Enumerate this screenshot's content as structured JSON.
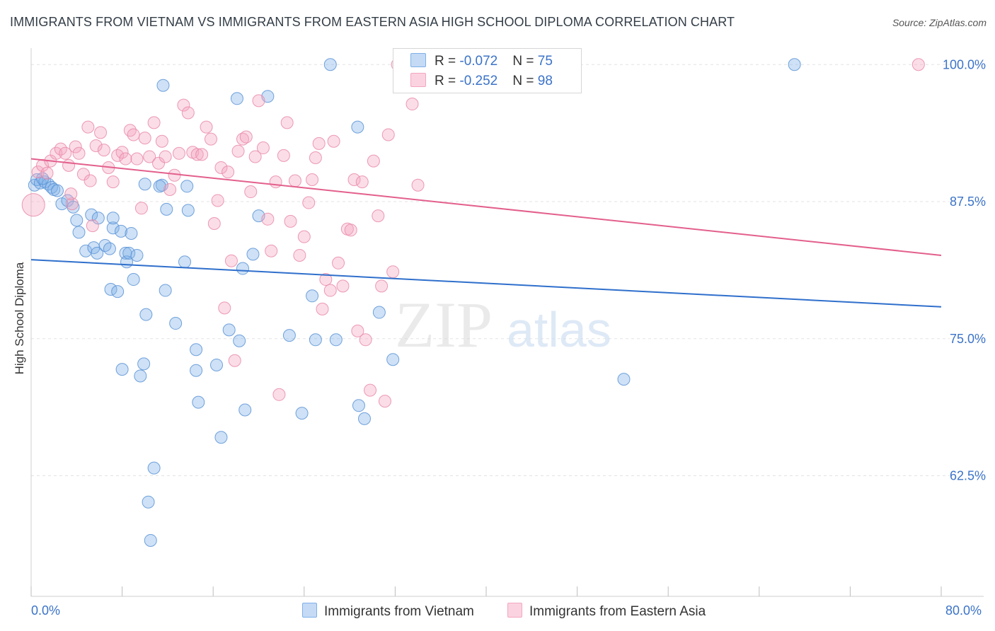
{
  "header": {
    "title": "IMMIGRANTS FROM VIETNAM VS IMMIGRANTS FROM EASTERN ASIA HIGH SCHOOL DIPLOMA CORRELATION CHART",
    "source": "Source: ZipAtlas.com"
  },
  "watermark": {
    "zip": "ZIP",
    "atlas": "atlas"
  },
  "legend": {
    "rows": [
      {
        "r_label": "R = ",
        "r_value": "-0.072",
        "n_label": "N = ",
        "n_value": "75",
        "color": "#7fb0e8"
      },
      {
        "r_label": "R = ",
        "r_value": "-0.252",
        "n_label": "N = ",
        "n_value": "98",
        "color": "#f4a6bf"
      }
    ]
  },
  "bottom_legend": {
    "items": [
      {
        "label": "Immigrants from Vietnam",
        "color": "#7fb0e8"
      },
      {
        "label": "Immigrants from Eastern Asia",
        "color": "#f4a6bf"
      }
    ]
  },
  "chart_data": {
    "type": "scatter",
    "xlabel": "",
    "ylabel": "High School Diploma",
    "xlim": [
      0,
      80
    ],
    "ylim": [
      51.5,
      101.5
    ],
    "x_tick_labels": [
      "0.0%",
      "80.0%"
    ],
    "y_ticks": [
      62.5,
      75.0,
      87.5,
      100.0
    ],
    "y_tick_labels": [
      "62.5%",
      "75.0%",
      "87.5%",
      "100.0%"
    ],
    "grid": true,
    "legend_position": "top-center",
    "series": [
      {
        "name": "Immigrants from Vietnam",
        "color": "#7fb0e8",
        "stroke": "#5b93d6",
        "trend": {
          "x": [
            0,
            80
          ],
          "y": [
            82.2,
            77.9
          ],
          "color": "#2f6fcc"
        },
        "points": [
          [
            0.3,
            89.0
          ],
          [
            0.5,
            89.5
          ],
          [
            0.8,
            89.2
          ],
          [
            1.2,
            89.3
          ],
          [
            1.5,
            89.1
          ],
          [
            1.8,
            88.8
          ],
          [
            2.0,
            88.6
          ],
          [
            1.0,
            89.6
          ],
          [
            2.3,
            88.5
          ],
          [
            2.7,
            87.3
          ],
          [
            3.2,
            87.6
          ],
          [
            3.7,
            87.0
          ],
          [
            4.0,
            85.8
          ],
          [
            4.2,
            84.7
          ],
          [
            4.8,
            83.0
          ],
          [
            5.5,
            83.3
          ],
          [
            5.8,
            82.8
          ],
          [
            5.3,
            86.3
          ],
          [
            5.9,
            86.0
          ],
          [
            6.5,
            83.5
          ],
          [
            6.9,
            83.2
          ],
          [
            7.2,
            85.1
          ],
          [
            7.0,
            79.5
          ],
          [
            7.6,
            79.3
          ],
          [
            7.2,
            86.0
          ],
          [
            7.9,
            84.8
          ],
          [
            8.3,
            82.8
          ],
          [
            8.4,
            82.0
          ],
          [
            8.8,
            84.6
          ],
          [
            9.0,
            80.4
          ],
          [
            8.6,
            82.8
          ],
          [
            9.3,
            82.6
          ],
          [
            10.0,
            89.1
          ],
          [
            11.5,
            89.0
          ],
          [
            11.3,
            88.9
          ],
          [
            11.8,
            79.4
          ],
          [
            11.9,
            86.8
          ],
          [
            12.7,
            76.4
          ],
          [
            13.7,
            88.9
          ],
          [
            13.5,
            82.0
          ],
          [
            13.8,
            86.7
          ],
          [
            14.5,
            74.0
          ],
          [
            14.5,
            72.1
          ],
          [
            14.7,
            69.2
          ],
          [
            16.3,
            72.6
          ],
          [
            16.7,
            66.0
          ],
          [
            17.4,
            75.8
          ],
          [
            18.3,
            74.8
          ],
          [
            18.6,
            81.4
          ],
          [
            18.8,
            68.5
          ],
          [
            19.5,
            82.7
          ],
          [
            20.0,
            86.2
          ],
          [
            20.8,
            97.1
          ],
          [
            22.7,
            75.3
          ],
          [
            23.8,
            68.2
          ],
          [
            24.7,
            78.9
          ],
          [
            25.0,
            74.9
          ],
          [
            26.3,
            100.0
          ],
          [
            26.8,
            74.9
          ],
          [
            28.7,
            94.3
          ],
          [
            28.8,
            68.9
          ],
          [
            29.3,
            67.7
          ],
          [
            30.6,
            77.4
          ],
          [
            31.8,
            73.1
          ],
          [
            8.0,
            72.2
          ],
          [
            10.1,
            77.2
          ],
          [
            9.6,
            71.6
          ],
          [
            9.9,
            72.7
          ],
          [
            10.3,
            60.1
          ],
          [
            10.5,
            56.6
          ],
          [
            10.8,
            63.2
          ],
          [
            11.6,
            98.1
          ],
          [
            18.1,
            96.9
          ],
          [
            67.1,
            100.0
          ],
          [
            52.1,
            71.3
          ]
        ]
      },
      {
        "name": "Immigrants from Eastern Asia",
        "color": "#f4a6bf",
        "stroke": "#e989a8",
        "trend": {
          "x": [
            0,
            80
          ],
          "y": [
            91.4,
            82.6
          ],
          "color": "#e35f8d"
        },
        "points": [
          [
            0.2,
            87.2
          ],
          [
            0.6,
            90.2
          ],
          [
            1.0,
            90.8
          ],
          [
            1.4,
            90.1
          ],
          [
            1.7,
            91.2
          ],
          [
            2.2,
            91.9
          ],
          [
            2.6,
            92.3
          ],
          [
            3.0,
            91.9
          ],
          [
            3.3,
            90.8
          ],
          [
            3.6,
            87.3
          ],
          [
            3.9,
            92.5
          ],
          [
            4.2,
            91.9
          ],
          [
            4.6,
            90.0
          ],
          [
            5.0,
            94.3
          ],
          [
            5.4,
            85.3
          ],
          [
            5.7,
            92.6
          ],
          [
            6.1,
            93.8
          ],
          [
            6.4,
            92.2
          ],
          [
            6.8,
            90.6
          ],
          [
            7.2,
            89.3
          ],
          [
            7.6,
            91.7
          ],
          [
            8.0,
            92.0
          ],
          [
            8.3,
            91.4
          ],
          [
            8.7,
            94.0
          ],
          [
            9.0,
            93.6
          ],
          [
            9.3,
            91.4
          ],
          [
            9.7,
            86.9
          ],
          [
            10.0,
            93.3
          ],
          [
            10.4,
            91.6
          ],
          [
            10.8,
            94.7
          ],
          [
            11.2,
            91.0
          ],
          [
            11.5,
            93.0
          ],
          [
            11.8,
            91.6
          ],
          [
            12.2,
            88.6
          ],
          [
            12.6,
            89.9
          ],
          [
            13.0,
            91.9
          ],
          [
            13.4,
            96.3
          ],
          [
            13.8,
            95.6
          ],
          [
            14.2,
            92.0
          ],
          [
            14.6,
            91.8
          ],
          [
            15.0,
            91.8
          ],
          [
            15.4,
            94.3
          ],
          [
            15.8,
            93.2
          ],
          [
            16.1,
            85.5
          ],
          [
            16.4,
            87.6
          ],
          [
            16.7,
            90.6
          ],
          [
            17.0,
            77.8
          ],
          [
            17.3,
            90.2
          ],
          [
            17.6,
            82.1
          ],
          [
            17.9,
            73.0
          ],
          [
            18.2,
            92.1
          ],
          [
            18.6,
            93.2
          ],
          [
            18.9,
            93.4
          ],
          [
            19.3,
            88.4
          ],
          [
            19.7,
            91.6
          ],
          [
            20.0,
            96.7
          ],
          [
            20.4,
            92.4
          ],
          [
            20.8,
            85.9
          ],
          [
            21.1,
            83.0
          ],
          [
            21.5,
            89.3
          ],
          [
            21.8,
            69.9
          ],
          [
            22.2,
            91.7
          ],
          [
            22.5,
            94.7
          ],
          [
            22.8,
            85.7
          ],
          [
            23.2,
            89.4
          ],
          [
            23.6,
            82.6
          ],
          [
            24.0,
            84.3
          ],
          [
            24.4,
            87.4
          ],
          [
            24.7,
            89.5
          ],
          [
            25.0,
            91.5
          ],
          [
            25.3,
            92.8
          ],
          [
            25.6,
            77.7
          ],
          [
            25.9,
            80.4
          ],
          [
            26.3,
            79.4
          ],
          [
            26.6,
            93.0
          ],
          [
            27.0,
            81.9
          ],
          [
            27.4,
            79.8
          ],
          [
            27.8,
            85.0
          ],
          [
            28.1,
            84.9
          ],
          [
            28.4,
            89.5
          ],
          [
            28.7,
            75.7
          ],
          [
            29.1,
            89.3
          ],
          [
            29.4,
            74.9
          ],
          [
            29.8,
            70.3
          ],
          [
            30.1,
            91.2
          ],
          [
            30.5,
            86.2
          ],
          [
            30.8,
            79.8
          ],
          [
            31.1,
            69.3
          ],
          [
            31.4,
            93.6
          ],
          [
            31.8,
            81.1
          ],
          [
            32.2,
            100.0
          ],
          [
            32.7,
            98.9
          ],
          [
            33.1,
            100.0
          ],
          [
            33.5,
            96.4
          ],
          [
            34.0,
            89.0
          ],
          [
            3.5,
            88.2
          ],
          [
            5.2,
            89.4
          ],
          [
            78.0,
            100.0
          ]
        ]
      }
    ]
  }
}
